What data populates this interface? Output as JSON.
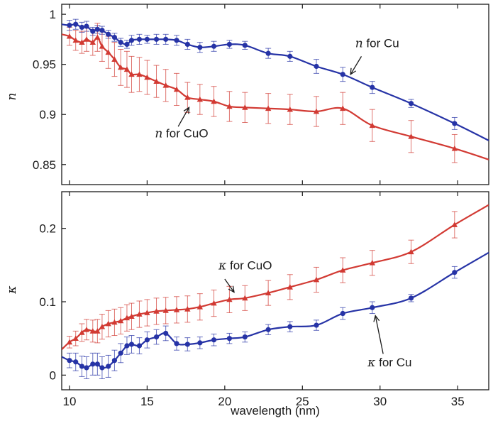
{
  "chart_data": [
    {
      "type": "line",
      "title": "",
      "xlabel": "",
      "ylabel": "n",
      "xlim": [
        9.5,
        37
      ],
      "ylim": [
        0.83,
        1.01
      ],
      "yticks": [
        0.85,
        0.9,
        0.95,
        1
      ],
      "ytick_labels": [
        "0.85",
        "0.9",
        "0.95",
        "1"
      ],
      "xticks": [
        10,
        15,
        20,
        25,
        30,
        35
      ],
      "show_x_tick_labels": false,
      "grid": false,
      "legend": "none",
      "series": [
        {
          "name": "n for Cu",
          "color": "#2633a6",
          "marker": "circle",
          "x": [
            9.5,
            10.0,
            10.4,
            10.8,
            11.1,
            11.5,
            11.8,
            12.1,
            12.5,
            12.9,
            13.3,
            13.7,
            14.0,
            14.5,
            15.0,
            15.6,
            16.2,
            16.9,
            17.6,
            18.4,
            19.3,
            20.3,
            21.3,
            22.8,
            24.2,
            25.9,
            27.6,
            29.5,
            32.0,
            34.8,
            37.0
          ],
          "y": [
            0.99,
            0.989,
            0.99,
            0.987,
            0.988,
            0.983,
            0.985,
            0.984,
            0.98,
            0.977,
            0.972,
            0.97,
            0.974,
            0.975,
            0.975,
            0.975,
            0.975,
            0.974,
            0.97,
            0.967,
            0.968,
            0.97,
            0.969,
            0.961,
            0.958,
            0.948,
            0.94,
            0.927,
            0.911,
            0.891,
            0.874
          ],
          "err": [
            0.004,
            0.005,
            0.005,
            0.005,
            0.005,
            0.004,
            0.004,
            0.004,
            0.004,
            0.004,
            0.004,
            0.004,
            0.005,
            0.005,
            0.004,
            0.005,
            0.005,
            0.005,
            0.005,
            0.005,
            0.005,
            0.004,
            0.004,
            0.005,
            0.005,
            0.007,
            0.007,
            0.006,
            0.004,
            0.006,
            0.0
          ],
          "marker_from": 1,
          "marker_to": 29
        },
        {
          "name": "n for CuO",
          "color": "#d23a33",
          "marker": "triangle",
          "x": [
            9.5,
            10.0,
            10.4,
            10.8,
            11.1,
            11.5,
            11.8,
            12.1,
            12.5,
            12.9,
            13.3,
            13.7,
            14.0,
            14.5,
            15.0,
            15.6,
            16.2,
            16.9,
            17.6,
            18.4,
            19.3,
            20.3,
            21.3,
            22.8,
            24.2,
            25.9,
            27.6,
            29.5,
            32.0,
            34.8,
            37.0
          ],
          "y": [
            0.98,
            0.978,
            0.974,
            0.972,
            0.975,
            0.972,
            0.977,
            0.968,
            0.962,
            0.955,
            0.947,
            0.945,
            0.94,
            0.94,
            0.937,
            0.933,
            0.929,
            0.925,
            0.917,
            0.915,
            0.913,
            0.908,
            0.907,
            0.906,
            0.905,
            0.903,
            0.906,
            0.889,
            0.878,
            0.866,
            0.855
          ],
          "err": [
            0.007,
            0.009,
            0.01,
            0.011,
            0.012,
            0.013,
            0.014,
            0.015,
            0.016,
            0.017,
            0.018,
            0.018,
            0.018,
            0.017,
            0.017,
            0.016,
            0.016,
            0.016,
            0.015,
            0.015,
            0.015,
            0.015,
            0.015,
            0.015,
            0.015,
            0.015,
            0.016,
            0.016,
            0.016,
            0.014,
            0.0
          ],
          "marker_from": 1,
          "marker_to": 29
        }
      ],
      "annotations": [
        {
          "math": "n",
          "text": " for Cu",
          "x": 28.4,
          "y": 0.967,
          "arrow_from": [
            28.8,
            0.958
          ],
          "arrow_to": [
            28.1,
            0.94
          ]
        },
        {
          "math": "n",
          "text": " for CuO",
          "x": 15.5,
          "y": 0.877,
          "arrow_from": [
            17.0,
            0.888
          ],
          "arrow_to": [
            17.7,
            0.907
          ]
        }
      ]
    },
    {
      "type": "line",
      "title": "",
      "xlabel": "wavelength (nm)",
      "ylabel": "κ",
      "xlim": [
        9.5,
        37
      ],
      "ylim": [
        -0.02,
        0.25
      ],
      "yticks": [
        0,
        0.1,
        0.2
      ],
      "ytick_labels": [
        "0",
        "0.1",
        "0.2"
      ],
      "xticks": [
        10,
        15,
        20,
        25,
        30,
        35
      ],
      "xtick_labels": [
        "10",
        "15",
        "20",
        "25",
        "30",
        "35"
      ],
      "show_x_tick_labels": true,
      "grid": false,
      "legend": "none",
      "series": [
        {
          "name": "κ for Cu",
          "color": "#2633a6",
          "marker": "circle",
          "x": [
            9.5,
            10.0,
            10.4,
            10.8,
            11.1,
            11.5,
            11.8,
            12.1,
            12.5,
            12.9,
            13.3,
            13.7,
            14.0,
            14.5,
            15.0,
            15.6,
            16.2,
            16.9,
            17.6,
            18.4,
            19.3,
            20.3,
            21.3,
            22.8,
            24.2,
            25.9,
            27.6,
            29.5,
            32.0,
            34.8,
            37.0
          ],
          "y": [
            0.025,
            0.02,
            0.018,
            0.012,
            0.01,
            0.015,
            0.015,
            0.01,
            0.012,
            0.02,
            0.03,
            0.04,
            0.042,
            0.04,
            0.048,
            0.052,
            0.057,
            0.043,
            0.042,
            0.044,
            0.048,
            0.05,
            0.052,
            0.062,
            0.066,
            0.068,
            0.084,
            0.092,
            0.105,
            0.14,
            0.167
          ],
          "err": [
            0.006,
            0.01,
            0.012,
            0.014,
            0.015,
            0.015,
            0.015,
            0.015,
            0.015,
            0.014,
            0.013,
            0.012,
            0.012,
            0.011,
            0.011,
            0.01,
            0.01,
            0.009,
            0.009,
            0.008,
            0.008,
            0.007,
            0.007,
            0.007,
            0.007,
            0.007,
            0.008,
            0.008,
            0.005,
            0.008,
            0.0
          ],
          "marker_from": 1,
          "marker_to": 29
        },
        {
          "name": "κ for CuO",
          "color": "#d23a33",
          "marker": "triangle",
          "x": [
            9.5,
            10.0,
            10.4,
            10.8,
            11.1,
            11.5,
            11.8,
            12.1,
            12.5,
            12.9,
            13.3,
            13.7,
            14.0,
            14.5,
            15.0,
            15.6,
            16.2,
            16.9,
            17.6,
            18.4,
            19.3,
            20.3,
            21.3,
            22.8,
            24.2,
            25.9,
            27.6,
            29.5,
            32.0,
            34.8,
            37.0
          ],
          "y": [
            0.035,
            0.045,
            0.05,
            0.058,
            0.062,
            0.06,
            0.06,
            0.066,
            0.07,
            0.072,
            0.074,
            0.078,
            0.08,
            0.083,
            0.085,
            0.087,
            0.088,
            0.089,
            0.09,
            0.093,
            0.098,
            0.103,
            0.105,
            0.112,
            0.12,
            0.13,
            0.143,
            0.153,
            0.168,
            0.205,
            0.232
          ],
          "err": [
            0.004,
            0.008,
            0.01,
            0.012,
            0.014,
            0.015,
            0.016,
            0.017,
            0.018,
            0.018,
            0.018,
            0.018,
            0.018,
            0.018,
            0.018,
            0.018,
            0.018,
            0.018,
            0.018,
            0.018,
            0.018,
            0.018,
            0.017,
            0.017,
            0.017,
            0.017,
            0.017,
            0.017,
            0.016,
            0.018,
            0.0
          ],
          "marker_from": 1,
          "marker_to": 29
        }
      ],
      "annotations": [
        {
          "math": "κ",
          "text": " for CuO",
          "x": 19.6,
          "y": 0.144,
          "arrow_from": [
            20.0,
            0.131
          ],
          "arrow_to": [
            20.6,
            0.113
          ]
        },
        {
          "math": "κ",
          "text": " for Cu",
          "x": 29.2,
          "y": 0.012,
          "arrow_from": [
            30.2,
            0.029
          ],
          "arrow_to": [
            29.7,
            0.081
          ]
        }
      ]
    }
  ]
}
